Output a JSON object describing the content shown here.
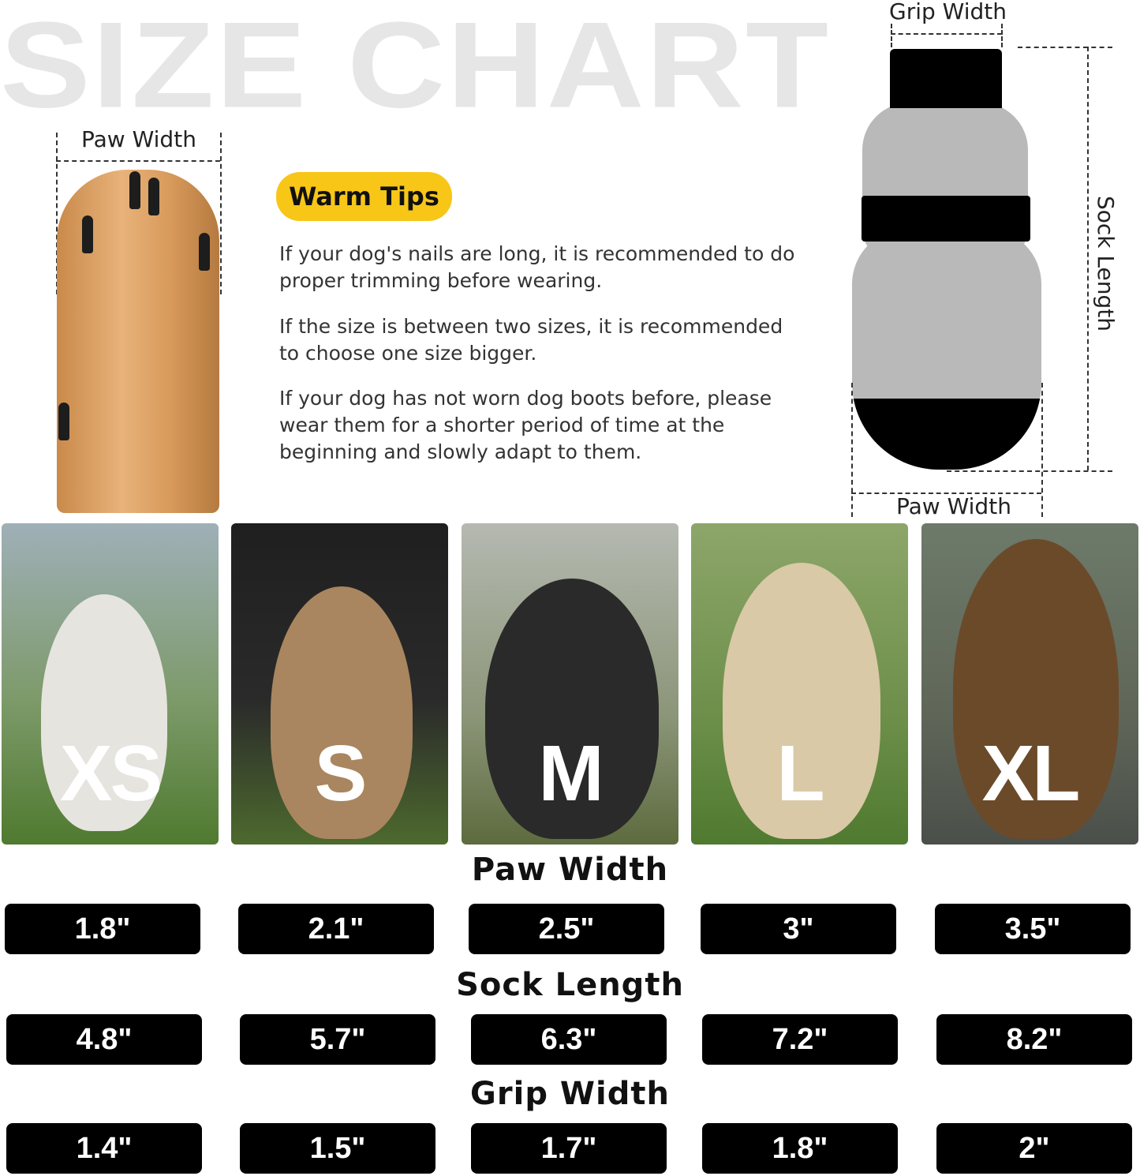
{
  "title": "SIZE CHART",
  "paw_diagram": {
    "label": "Paw Width"
  },
  "sock_diagram": {
    "grip_label": "Grip Width",
    "length_label": "Sock Length",
    "paw_label": "Paw Width"
  },
  "warm_tips": {
    "badge": "Warm Tips",
    "tips": [
      "If your dog's nails are long, it is recommended to do proper trimming before wearing.",
      "If the size is between two sizes, it is recommended to choose one size bigger.",
      "If your dog has not worn dog boots before, please wear them for a shorter period of time at the beginning and slowly adapt to them."
    ]
  },
  "sizes": [
    "XS",
    "S",
    "M",
    "L",
    "XL"
  ],
  "measurements": [
    {
      "heading": "Paw Width",
      "values": [
        "1.8\"",
        "2.1\"",
        "2.5\"",
        "3\"",
        "3.5\""
      ]
    },
    {
      "heading": "Sock Length",
      "values": [
        "4.8\"",
        "5.7\"",
        "6.3\"",
        "7.2\"",
        "8.2\""
      ]
    },
    {
      "heading": "Grip Width",
      "values": [
        "1.4\"",
        "1.5\"",
        "1.7\"",
        "1.8\"",
        "2\""
      ]
    }
  ],
  "colors": {
    "badge": "#f7c617",
    "pill": "#000000",
    "title": "#e6e6e6"
  }
}
